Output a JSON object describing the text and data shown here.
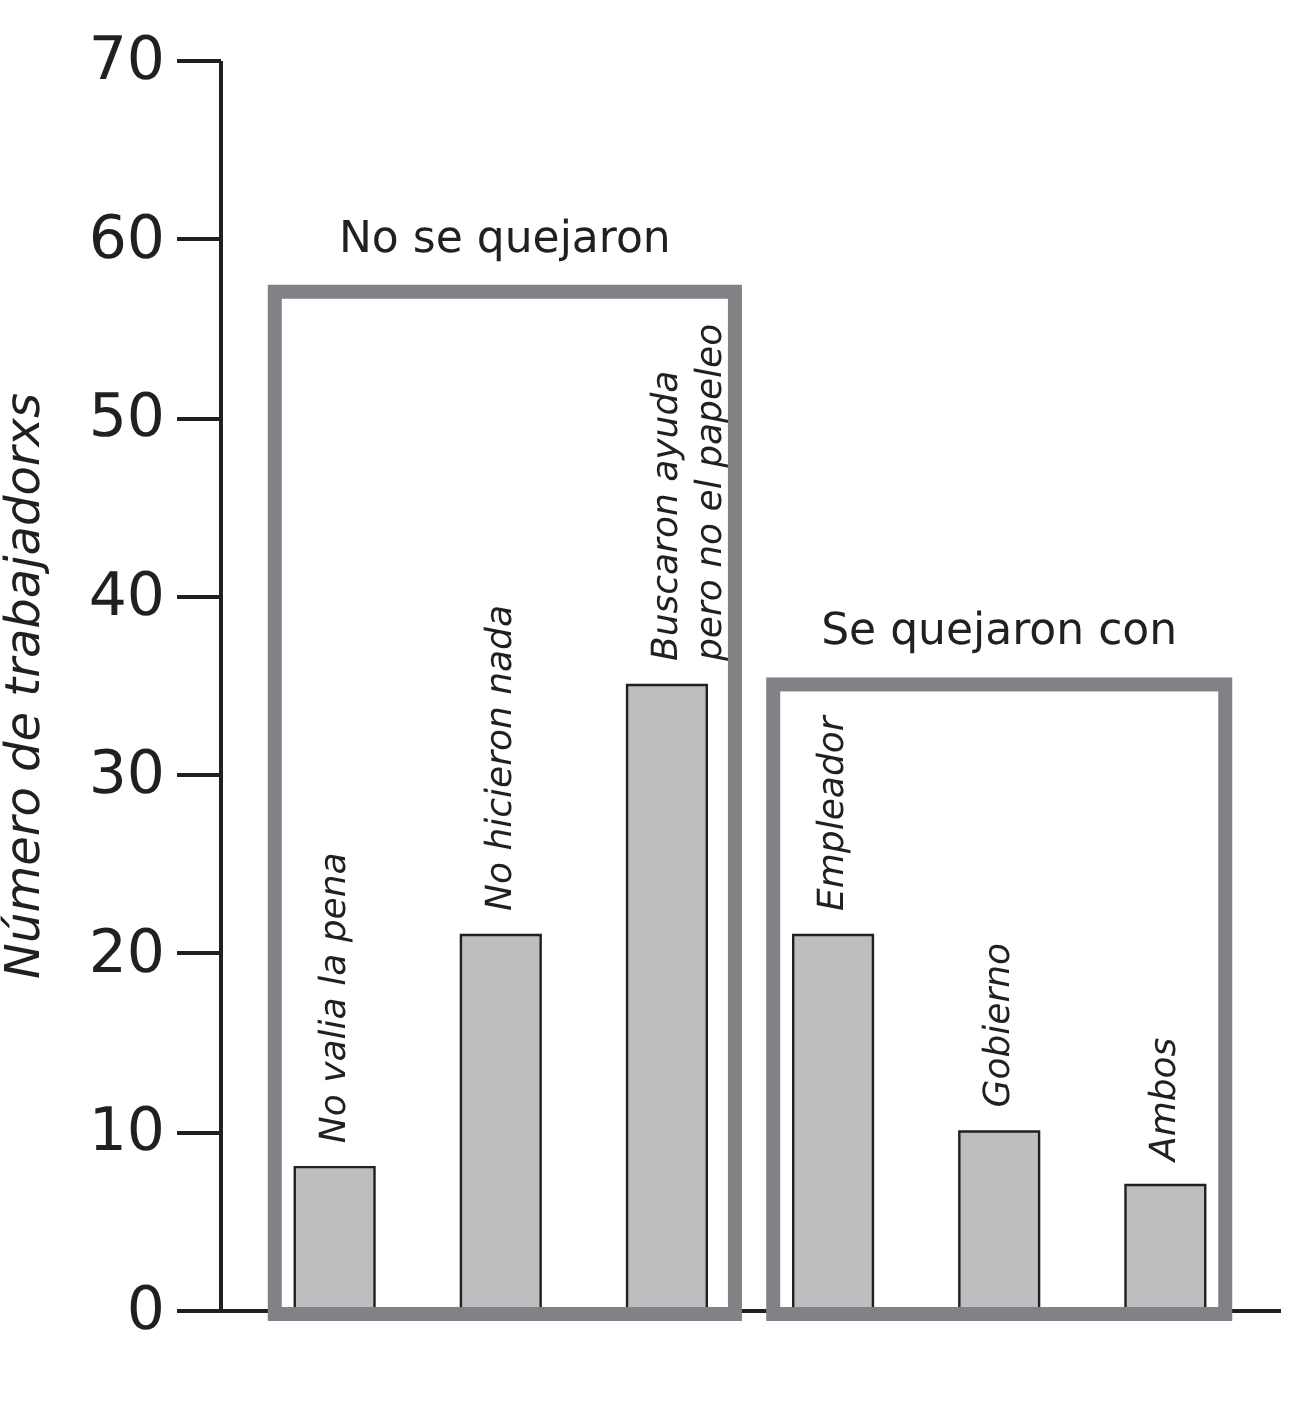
{
  "chart_data": {
    "type": "bar",
    "ylabel": "Número de trabajadorxs",
    "categories": [
      "No valia la pena",
      "No hicieron nada",
      "Buscaron ayuda pero no el papeleo",
      "Empleador",
      "Gobierno",
      "Ambos"
    ],
    "values": [
      8,
      21,
      35,
      21,
      10,
      7
    ],
    "color": "#bcbec0",
    "ylim": [
      0,
      70
    ],
    "yticks": [
      0,
      10,
      20,
      30,
      40,
      50,
      60,
      70
    ],
    "grid": false,
    "tick_labels": "y",
    "annotations": [
      "No se quejaron",
      "Se quejaron con"
    ]
  }
}
